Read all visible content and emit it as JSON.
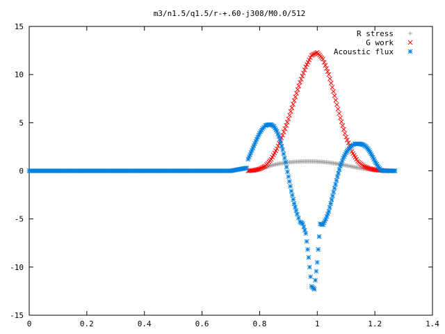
{
  "chart_data": {
    "type": "scatter",
    "title": "m3/n1.5/q1.5/r-+.60-j308/M0.0/512",
    "xlabel": "",
    "ylabel": "",
    "xlim": [
      0,
      1.4
    ],
    "ylim": [
      -15,
      15
    ],
    "xticks": [
      "0",
      "0.2",
      "0.4",
      "0.6",
      "0.8",
      "1",
      "1.2",
      "1.4"
    ],
    "yticks": [
      "15",
      "10",
      "5",
      "0",
      "-5",
      "-10",
      "-15"
    ],
    "grid": false,
    "legend_position": "top-right",
    "series": [
      {
        "name": "R stress",
        "marker": "+",
        "color": "#a0a0a0",
        "x": [
          0.78,
          0.8,
          0.82,
          0.84,
          0.86,
          0.88,
          0.9,
          0.92,
          0.94,
          0.96,
          0.98,
          1.0,
          1.02,
          1.04,
          1.06,
          1.08,
          1.1,
          1.12,
          1.14,
          1.16,
          1.18,
          1.2,
          1.22,
          1.24,
          1.26
        ],
        "y": [
          0.0,
          0.15,
          0.35,
          0.55,
          0.7,
          0.8,
          0.88,
          0.93,
          0.96,
          0.98,
          0.98,
          0.96,
          0.92,
          0.86,
          0.78,
          0.68,
          0.56,
          0.44,
          0.32,
          0.22,
          0.14,
          0.08,
          0.04,
          0.01,
          0.0
        ]
      },
      {
        "name": "G work",
        "marker": "x",
        "color": "#ff0000",
        "x": [
          0.76,
          0.78,
          0.8,
          0.82,
          0.84,
          0.86,
          0.88,
          0.9,
          0.92,
          0.94,
          0.96,
          0.98,
          1.0,
          1.02,
          1.04,
          1.06,
          1.08,
          1.1,
          1.12,
          1.14,
          1.16,
          1.18,
          1.2,
          1.22,
          1.24,
          1.26
        ],
        "y": [
          0.0,
          0.05,
          0.2,
          0.5,
          1.2,
          2.3,
          3.7,
          5.4,
          7.3,
          9.2,
          10.8,
          12.0,
          12.3,
          11.6,
          10.0,
          7.8,
          5.5,
          3.5,
          2.0,
          1.0,
          0.5,
          0.25,
          0.1,
          0.04,
          0.01,
          0.0
        ]
      },
      {
        "name": "Acoustic flux",
        "marker": "*",
        "color": "#0080e0",
        "x": [
          0.0,
          0.1,
          0.2,
          0.3,
          0.4,
          0.5,
          0.6,
          0.7,
          0.755,
          0.76,
          0.77,
          0.78,
          0.79,
          0.8,
          0.81,
          0.82,
          0.83,
          0.84,
          0.85,
          0.86,
          0.87,
          0.88,
          0.89,
          0.9,
          0.91,
          0.92,
          0.93,
          0.94,
          0.95,
          0.96,
          0.97,
          0.98,
          0.99,
          1.0,
          1.01,
          1.02,
          1.03,
          1.04,
          1.05,
          1.06,
          1.07,
          1.08,
          1.09,
          1.1,
          1.11,
          1.12,
          1.13,
          1.14,
          1.15,
          1.16,
          1.17,
          1.18,
          1.19,
          1.2,
          1.21,
          1.22,
          1.23,
          1.24,
          1.25,
          1.26,
          1.27
        ],
        "y": [
          0.0,
          0.0,
          0.0,
          0.0,
          0.0,
          0.0,
          0.0,
          0.0,
          0.3,
          1.2,
          1.9,
          2.6,
          3.3,
          3.9,
          4.4,
          4.7,
          4.8,
          4.8,
          4.6,
          4.1,
          3.3,
          2.2,
          0.9,
          -0.6,
          -2.1,
          -3.4,
          -4.5,
          -5.3,
          -5.5,
          -6.5,
          -9.0,
          -12.0,
          -12.3,
          -9.5,
          -5.5,
          -5.6,
          -5.0,
          -4.2,
          -3.0,
          -1.8,
          -0.6,
          0.5,
          1.3,
          1.9,
          2.3,
          2.6,
          2.8,
          2.8,
          2.8,
          2.7,
          2.5,
          2.1,
          1.6,
          1.0,
          0.5,
          0.1,
          0.0,
          0.0,
          0.0,
          0.0,
          0.0
        ]
      }
    ]
  }
}
